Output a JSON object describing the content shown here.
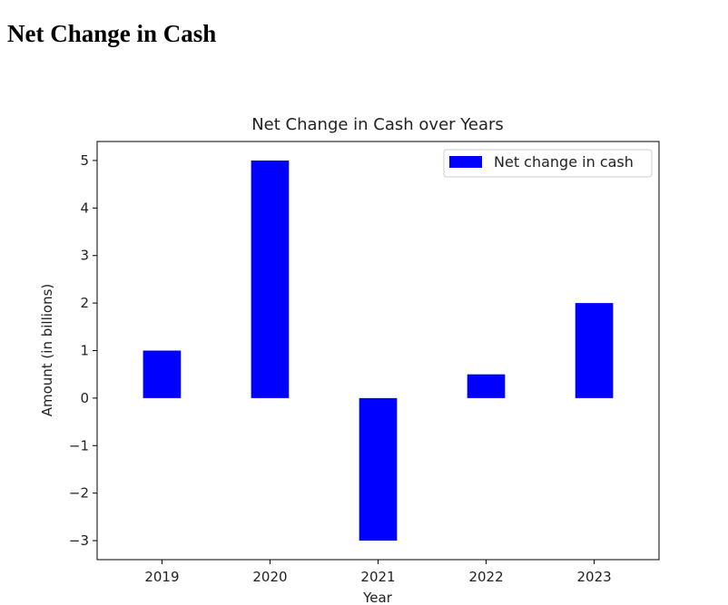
{
  "page": {
    "heading": "Net Change in Cash"
  },
  "chart_data": {
    "type": "bar",
    "title": "Net Change in Cash over Years",
    "xlabel": "Year",
    "ylabel": "Amount (in billions)",
    "categories": [
      "2019",
      "2020",
      "2021",
      "2022",
      "2023"
    ],
    "series": [
      {
        "name": "Net change in cash",
        "color": "#0000ff",
        "values": [
          1,
          5,
          -3,
          0.5,
          2
        ]
      }
    ],
    "ylim": [
      -3.4,
      5.4
    ],
    "yticks": [
      -3,
      -2,
      -1,
      0,
      1,
      2,
      3,
      4,
      5
    ],
    "ytick_labels": [
      "−3",
      "−2",
      "−1",
      "0",
      "1",
      "2",
      "3",
      "4",
      "5"
    ],
    "grid": false,
    "legend_position": "top-right"
  }
}
